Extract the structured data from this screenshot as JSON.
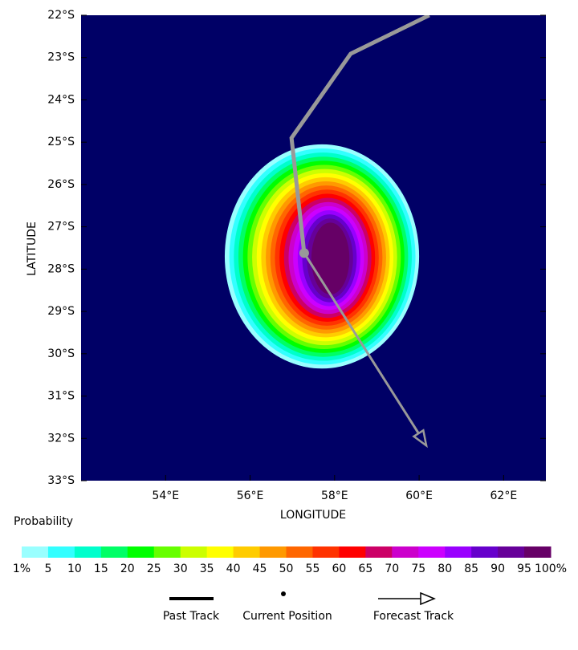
{
  "chart_data": {
    "type": "probability-map",
    "xlabel": "LONGITUDE",
    "ylabel": "LATITUDE",
    "xlim": [
      52,
      63
    ],
    "ylim": [
      -33,
      -22
    ],
    "xticks": [
      {
        "value": 54,
        "label": "54°E"
      },
      {
        "value": 56,
        "label": "56°E"
      },
      {
        "value": 58,
        "label": "58°E"
      },
      {
        "value": 60,
        "label": "60°E"
      },
      {
        "value": 62,
        "label": "62°E"
      }
    ],
    "yticks": [
      {
        "value": -22,
        "label": "22°S"
      },
      {
        "value": -23,
        "label": "23°S"
      },
      {
        "value": -24,
        "label": "24°S"
      },
      {
        "value": -25,
        "label": "25°S"
      },
      {
        "value": -26,
        "label": "26°S"
      },
      {
        "value": -27,
        "label": "27°S"
      },
      {
        "value": -28,
        "label": "28°S"
      },
      {
        "value": -29,
        "label": "29°S"
      },
      {
        "value": -30,
        "label": "30°S"
      },
      {
        "value": -31,
        "label": "31°S"
      },
      {
        "value": -32,
        "label": "32°S"
      },
      {
        "value": -33,
        "label": "33°S"
      }
    ],
    "background_color": "#000066",
    "colorbar": {
      "title": "Probability",
      "ticks": [
        {
          "value": 1,
          "label": "1%"
        },
        5,
        10,
        15,
        20,
        25,
        30,
        35,
        40,
        45,
        50,
        55,
        60,
        65,
        70,
        75,
        80,
        85,
        90,
        95,
        {
          "value": 100,
          "label": "100%"
        }
      ],
      "colors": [
        "#99ffff",
        "#33ffff",
        "#00ffcc",
        "#00ff66",
        "#00ff00",
        "#66ff00",
        "#ccff00",
        "#ffff00",
        "#ffcc00",
        "#ff9900",
        "#ff6600",
        "#ff3300",
        "#ff0000",
        "#cc0066",
        "#cc00cc",
        "#cc00ff",
        "#9900ff",
        "#6600cc",
        "#660099",
        "#660066"
      ]
    },
    "past_track": {
      "lon": [
        60.24,
        58.38,
        56.98,
        57.28
      ],
      "lat": [
        -22,
        -22.91,
        -24.9,
        -27.62
      ]
    },
    "current_position": {
      "lon": 57.28,
      "lat": -27.62
    },
    "forecast_track": {
      "lon": [
        57.28,
        60.17
      ],
      "lat": [
        -27.62,
        -32.17
      ]
    },
    "track_color": "#999999",
    "legend": [
      "Past Track",
      "Current Position",
      "Forecast Track"
    ]
  }
}
